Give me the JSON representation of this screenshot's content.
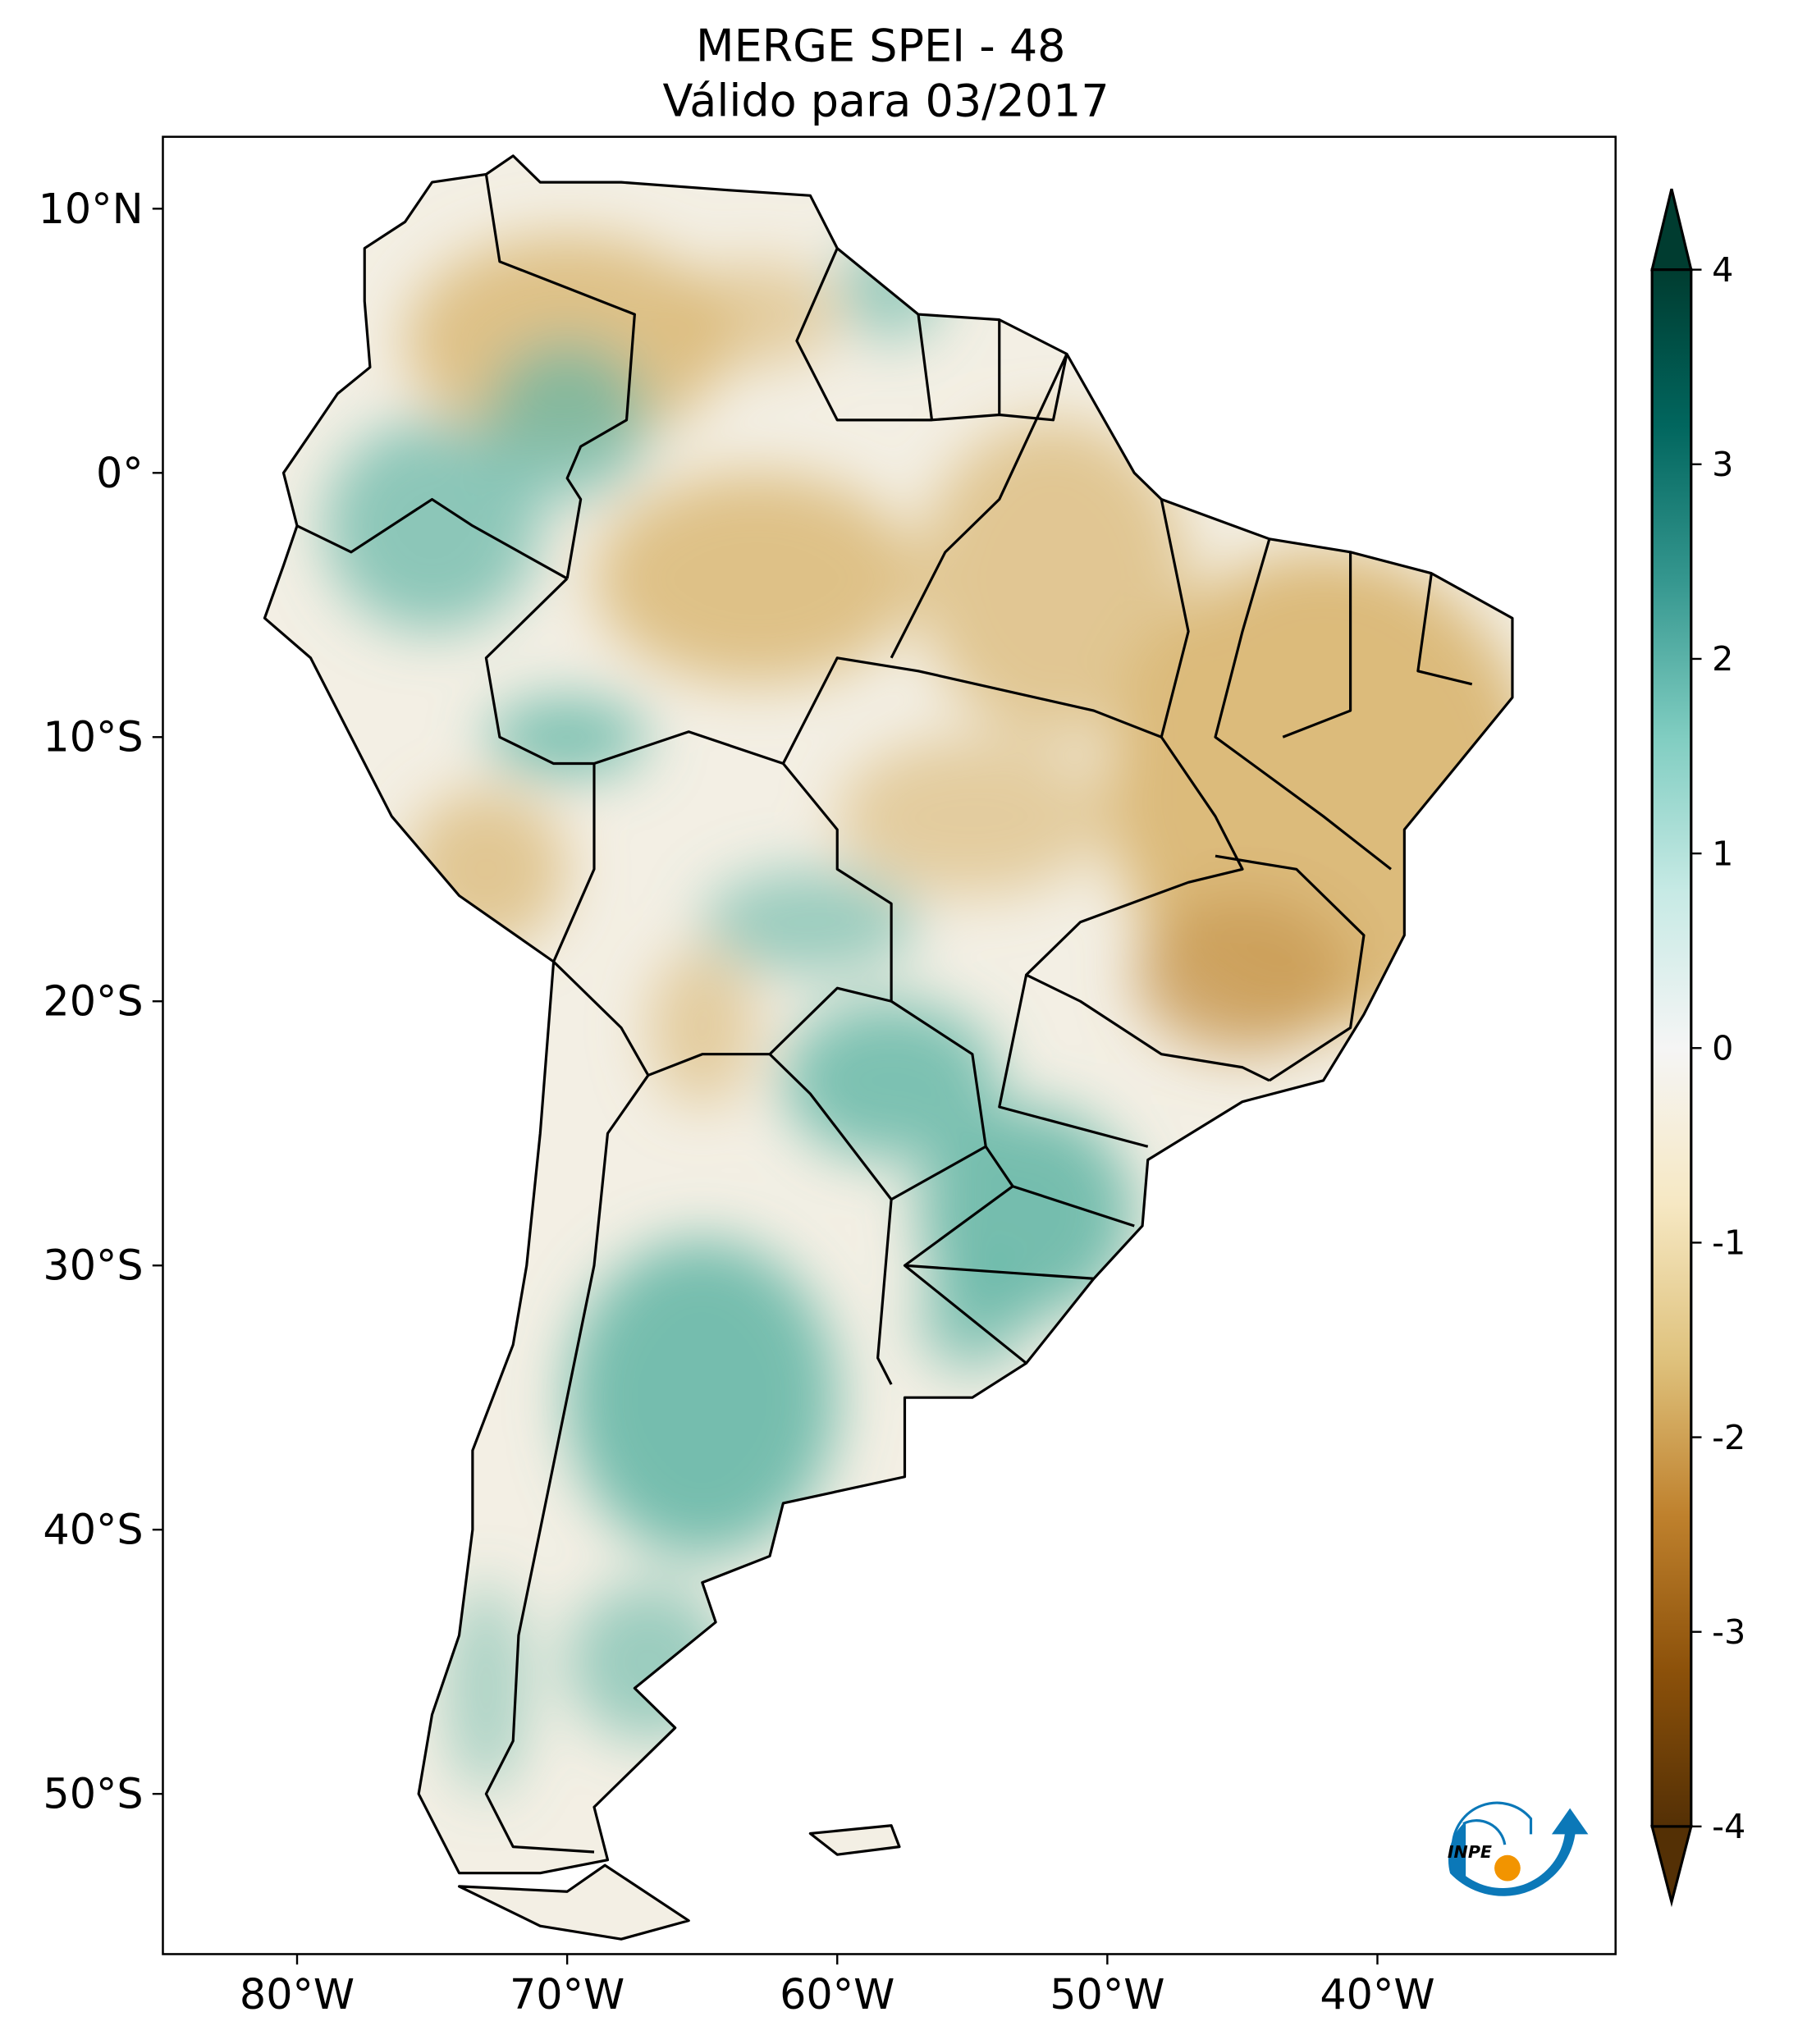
{
  "title": {
    "line1": "MERGE   SPEI - 48",
    "line2": "Válido para 03/2017"
  },
  "map": {
    "lon_range": [
      -85,
      -31
    ],
    "lat_range": [
      -56,
      13
    ],
    "x_ticks": [
      {
        "value": -80,
        "label": "80°W"
      },
      {
        "value": -70,
        "label": "70°W"
      },
      {
        "value": -60,
        "label": "60°W"
      },
      {
        "value": -50,
        "label": "50°W"
      },
      {
        "value": -40,
        "label": "40°W"
      }
    ],
    "y_ticks": [
      {
        "value": 10,
        "label": "10°N"
      },
      {
        "value": 0,
        "label": "0°"
      },
      {
        "value": -10,
        "label": "10°S"
      },
      {
        "value": -20,
        "label": "20°S"
      },
      {
        "value": -30,
        "label": "30°S"
      },
      {
        "value": -40,
        "label": "40°S"
      },
      {
        "value": -50,
        "label": "50°S"
      }
    ],
    "dry_color": "#d9b570",
    "wet_color": "#5fb5a5",
    "border_color": "#000000"
  },
  "colorbar": {
    "range": [
      -4,
      4
    ],
    "extend": "both",
    "ticks": [
      {
        "value": 4,
        "label": "4"
      },
      {
        "value": 3,
        "label": "3"
      },
      {
        "value": 2,
        "label": "2"
      },
      {
        "value": 1,
        "label": "1"
      },
      {
        "value": 0,
        "label": "0"
      },
      {
        "value": -1,
        "label": "-1"
      },
      {
        "value": -2,
        "label": "-2"
      },
      {
        "value": -3,
        "label": "-3"
      },
      {
        "value": -4,
        "label": "-4"
      }
    ],
    "colormap": "BrBG",
    "colors": [
      "#543005",
      "#8c510a",
      "#bf812d",
      "#dfc27d",
      "#f6e8c3",
      "#f5f5f5",
      "#c7eae5",
      "#80cdc1",
      "#35978f",
      "#01665e",
      "#003c30"
    ]
  },
  "logo": {
    "text": "INPE",
    "blue": "#0b78b8",
    "orange": "#f29400"
  }
}
